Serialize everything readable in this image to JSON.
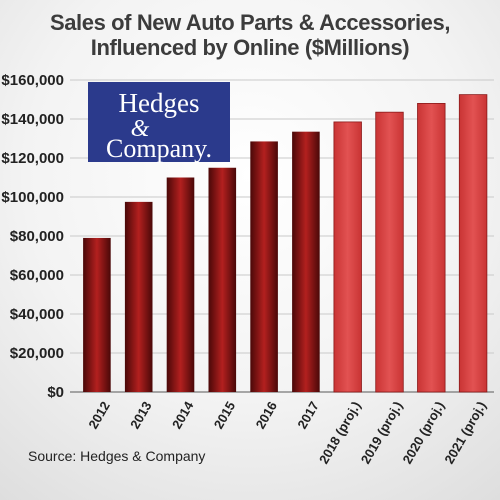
{
  "chart_data": {
    "type": "bar",
    "title_line1": "Sales of New Auto Parts & Accessories,",
    "title_line2": "Influenced by Online ($Millions)",
    "categories": [
      "2012",
      "2013",
      "2014",
      "2015",
      "2016",
      "2017",
      "2018 (proj.)",
      "2019 (proj.)",
      "2020 (proj.)",
      "2021 (proj.)"
    ],
    "values": [
      79000,
      97500,
      110000,
      115000,
      128500,
      133500,
      138500,
      143500,
      148000,
      152500
    ],
    "projected": [
      false,
      false,
      false,
      false,
      false,
      false,
      true,
      true,
      true,
      true
    ],
    "ylim": [
      0,
      160000
    ],
    "y_ticks": [
      "$0",
      "$20,000",
      "$40,000",
      "$60,000",
      "$80,000",
      "$100,000",
      "$120,000",
      "$140,000",
      "$160,000"
    ],
    "y_tick_values": [
      0,
      20000,
      40000,
      60000,
      80000,
      100000,
      120000,
      140000,
      160000
    ],
    "grid": true,
    "colors": {
      "actual_dark": "#5e0d0d",
      "actual_light": "#b01e1e",
      "projected": "#d94141",
      "projected_edge": "#8a1a1a",
      "grid": "#c9c9c9",
      "logo_bg": "#2b3a8c"
    },
    "logo": {
      "line1": "Hedges",
      "line2": "&",
      "line3": "Company."
    },
    "source": "Source: Hedges & Company"
  }
}
